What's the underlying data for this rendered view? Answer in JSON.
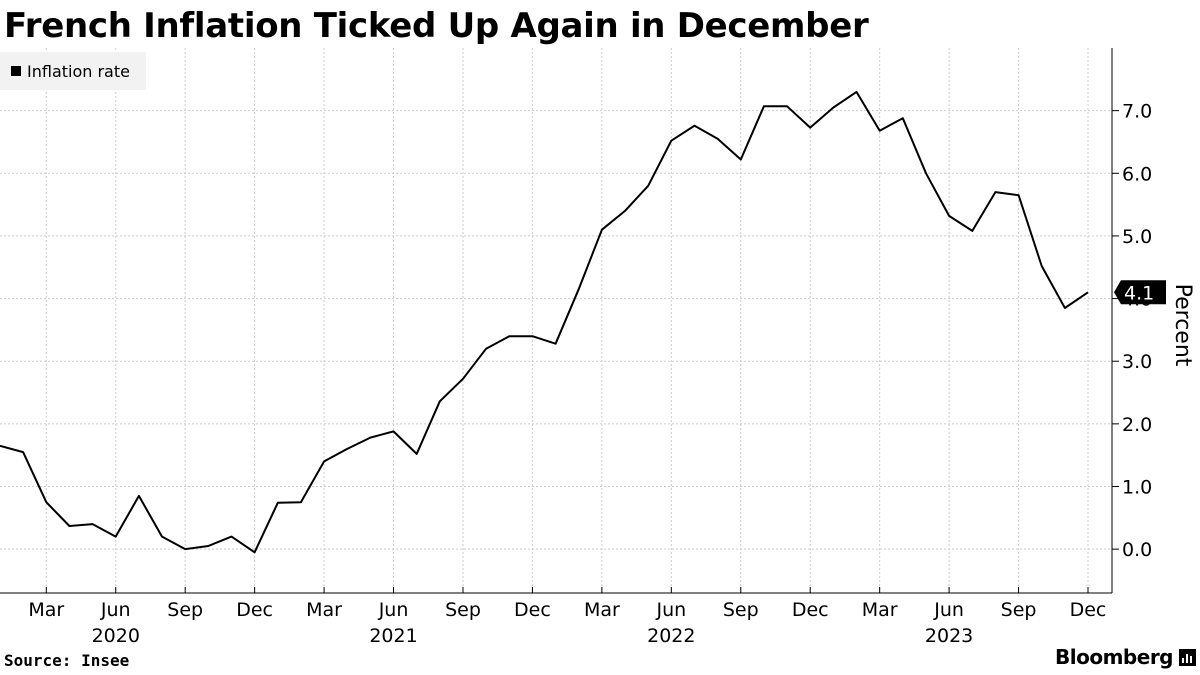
{
  "title": "French Inflation Ticked Up Again in December",
  "source": "Source: Insee",
  "brand": "Bloomberg",
  "brand_icon": "chart-bars-icon",
  "colors": {
    "line": "#000000",
    "grid": "#cccccc",
    "legend_bg": "#f2f2f2",
    "last_label_bg": "#000000"
  },
  "chart_data": {
    "type": "line",
    "title": "French Inflation Ticked Up Again in December",
    "ylabel": "Percent",
    "xlabel": "",
    "ylim": [
      -0.7,
      8.0
    ],
    "y_ticks": [
      0.0,
      1.0,
      2.0,
      3.0,
      4.0,
      5.0,
      6.0,
      7.0
    ],
    "y_tick_labels": [
      "0.0",
      "1.0",
      "2.0",
      "3.0",
      "4.0",
      "5.0",
      "6.0",
      "7.0"
    ],
    "y_axis_side": "right",
    "grid": true,
    "legend_placement": "top-left",
    "x_range": [
      "2020-01",
      "2023-12"
    ],
    "x_tick_labels": [
      {
        "date": "2020-03",
        "label": "Mar"
      },
      {
        "date": "2020-06",
        "label": "Jun"
      },
      {
        "date": "2020-09",
        "label": "Sep"
      },
      {
        "date": "2020-12",
        "label": "Dec"
      },
      {
        "date": "2021-03",
        "label": "Mar"
      },
      {
        "date": "2021-06",
        "label": "Jun"
      },
      {
        "date": "2021-09",
        "label": "Sep"
      },
      {
        "date": "2021-12",
        "label": "Dec"
      },
      {
        "date": "2022-03",
        "label": "Mar"
      },
      {
        "date": "2022-06",
        "label": "Jun"
      },
      {
        "date": "2022-09",
        "label": "Sep"
      },
      {
        "date": "2022-12",
        "label": "Dec"
      },
      {
        "date": "2023-03",
        "label": "Mar"
      },
      {
        "date": "2023-06",
        "label": "Jun"
      },
      {
        "date": "2023-09",
        "label": "Sep"
      },
      {
        "date": "2023-12",
        "label": "Dec"
      }
    ],
    "year_labels": [
      {
        "date": "2020-06",
        "label": "2020"
      },
      {
        "date": "2021-06",
        "label": "2021"
      },
      {
        "date": "2022-06",
        "label": "2022"
      },
      {
        "date": "2023-06",
        "label": "2023"
      }
    ],
    "x": [
      "2020-01",
      "2020-02",
      "2020-03",
      "2020-04",
      "2020-05",
      "2020-06",
      "2020-07",
      "2020-08",
      "2020-09",
      "2020-10",
      "2020-11",
      "2020-12",
      "2021-01",
      "2021-02",
      "2021-03",
      "2021-04",
      "2021-05",
      "2021-06",
      "2021-07",
      "2021-08",
      "2021-09",
      "2021-10",
      "2021-11",
      "2021-12",
      "2022-01",
      "2022-02",
      "2022-03",
      "2022-04",
      "2022-05",
      "2022-06",
      "2022-07",
      "2022-08",
      "2022-09",
      "2022-10",
      "2022-11",
      "2022-12",
      "2023-01",
      "2023-02",
      "2023-03",
      "2023-04",
      "2023-05",
      "2023-06",
      "2023-07",
      "2023-08",
      "2023-09",
      "2023-10",
      "2023-11",
      "2023-12"
    ],
    "series": [
      {
        "name": "Inflation rate",
        "values": [
          1.65,
          1.55,
          0.75,
          0.37,
          0.4,
          0.2,
          0.85,
          0.2,
          0.0,
          0.05,
          0.2,
          -0.05,
          0.74,
          0.75,
          1.4,
          1.6,
          1.78,
          1.88,
          1.52,
          2.36,
          2.72,
          3.2,
          3.4,
          3.4,
          3.28,
          4.15,
          5.1,
          5.4,
          5.8,
          6.52,
          6.76,
          6.55,
          6.22,
          7.07,
          7.07,
          6.73,
          7.05,
          7.3,
          6.68,
          6.88,
          6.0,
          5.32,
          5.08,
          5.7,
          5.65,
          4.52,
          3.85,
          4.1
        ]
      }
    ],
    "last_value_label": "4.1"
  }
}
